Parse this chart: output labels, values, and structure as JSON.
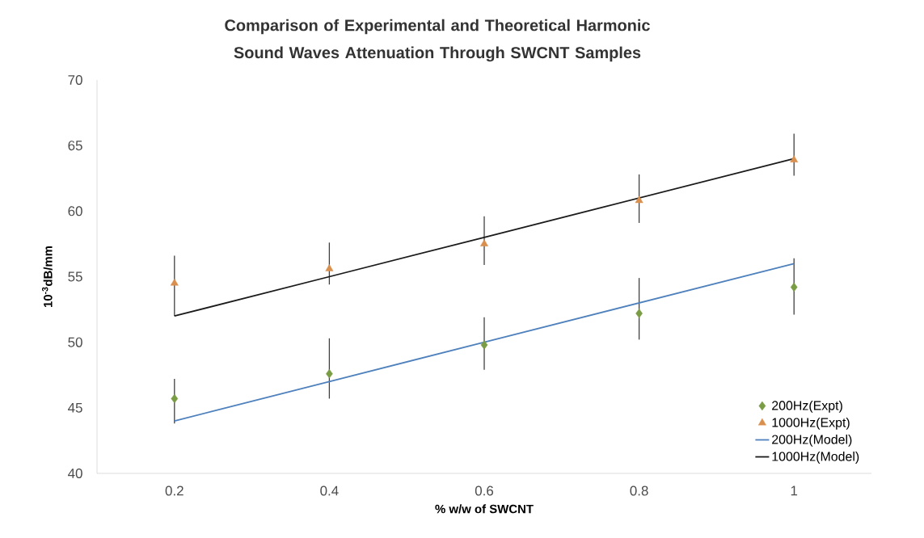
{
  "chart_data": {
    "type": "scatter",
    "title": "Comparison of Experimental and Theoretical Harmonic Sound Waves Attenuation Through SWCNT Samples",
    "xlabel": "% w/w of SWCNT",
    "ylabel": "10$^{-3}$dB/mm",
    "categories": [
      "0.2",
      "0.4",
      "0.6",
      "0.8",
      "1"
    ],
    "ylim": [
      40,
      70
    ],
    "yticks": [
      40,
      45,
      50,
      55,
      60,
      65,
      70
    ],
    "grid": false,
    "legend": "bottom right",
    "series": [
      {
        "name": "200Hz(Expt)",
        "marker": "diamond",
        "color": "#7a9c45",
        "values": [
          45.7,
          47.6,
          49.8,
          52.2,
          54.2
        ],
        "errors": [
          [
            43.8,
            47.2
          ],
          [
            45.7,
            50.3
          ],
          [
            47.9,
            51.9
          ],
          [
            50.2,
            54.9
          ],
          [
            52.1,
            56.4
          ]
        ]
      },
      {
        "name": "1000Hz(Expt)",
        "marker": "triangle",
        "color": "#d98f4e",
        "values": [
          54.5,
          55.6,
          57.5,
          60.8,
          63.9
        ],
        "errors": [
          [
            52,
            56.6
          ],
          [
            54.4,
            57.6
          ],
          [
            55.9,
            59.6
          ],
          [
            59.1,
            62.8
          ],
          [
            62.7,
            65.9
          ]
        ]
      },
      {
        "name": "200Hz(Model)",
        "type": "line",
        "line_style": "solid",
        "color": "#4f81bd",
        "values": [
          44,
          47,
          50,
          53,
          56
        ]
      },
      {
        "name": "1000Hz(Model)",
        "type": "line",
        "line_style": "solid",
        "color": "#1a1a1a",
        "values": [
          52,
          55,
          58,
          61,
          64
        ]
      }
    ]
  }
}
